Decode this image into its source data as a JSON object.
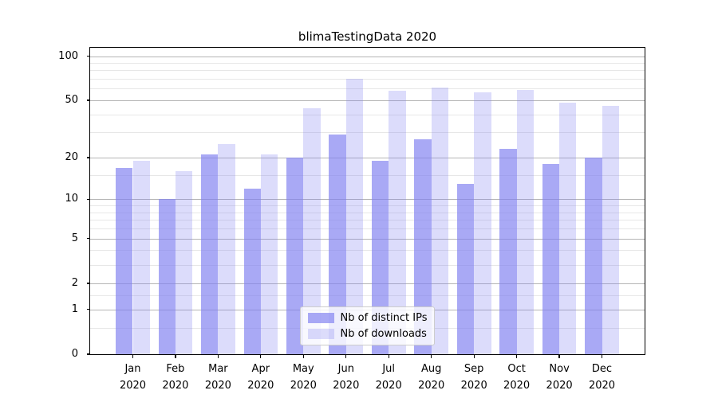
{
  "chart_data": {
    "type": "bar",
    "title": "blimaTestingData 2020",
    "categories": [
      "Jan",
      "Feb",
      "Mar",
      "Apr",
      "May",
      "Jun",
      "Jul",
      "Aug",
      "Sep",
      "Oct",
      "Nov",
      "Dec"
    ],
    "tick_year": "2020",
    "series": [
      {
        "name": "Nb of distinct IPs",
        "color": "#7f7ff0",
        "alpha": 0.67,
        "values": [
          17,
          10,
          21,
          12,
          20,
          29,
          19,
          27,
          13,
          23,
          18,
          20
        ]
      },
      {
        "name": "Nb of downloads",
        "color": "#7f7ff0",
        "alpha": 0.27,
        "values": [
          19,
          16,
          25,
          21,
          44,
          70,
          58,
          61,
          57,
          59,
          48,
          46
        ]
      }
    ],
    "y_axis": {
      "scale": "log1p",
      "min": 0,
      "max": 114,
      "ticks": [
        0,
        1,
        2,
        5,
        10,
        20,
        50,
        100
      ],
      "minor_gridlines": [
        0.5,
        1.5,
        3,
        4,
        6,
        7,
        8,
        9,
        15,
        30,
        40,
        60,
        70,
        80,
        90
      ]
    },
    "legend": {
      "position": "lower center"
    },
    "grid": true
  },
  "style": {
    "grid_major_color": "#b5b5b5",
    "grid_minor_color": "#e7e7e7",
    "spine_color": "#000000",
    "text_color": "#000000",
    "legend_border_color": "#cccccc"
  }
}
